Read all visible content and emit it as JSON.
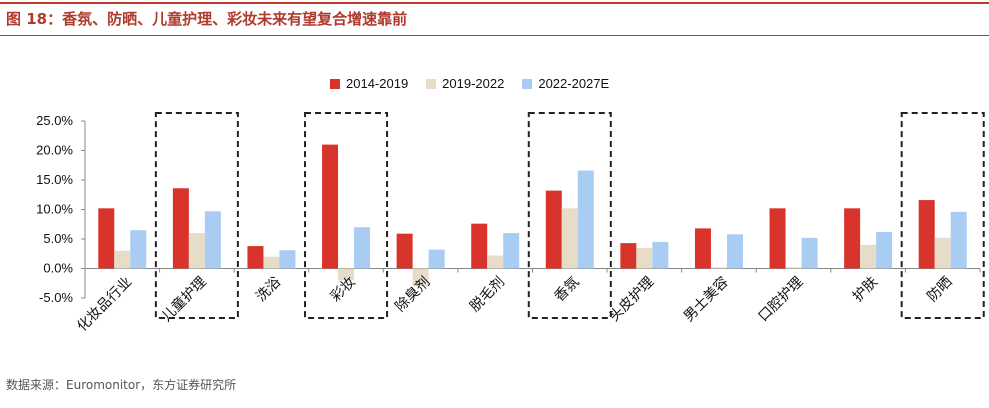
{
  "header": {
    "title": "图 18：香氛、防晒、儿童护理、彩妆未来有望复合增速靠前"
  },
  "footer": {
    "source": "数据来源：Euromonitor，东方证券研究所"
  },
  "chart_data": {
    "type": "bar",
    "title": "",
    "xlabel": "",
    "ylabel": "",
    "ylim": [
      -5,
      25
    ],
    "yticks": [
      "25.0%",
      "20.0%",
      "15.0%",
      "10.0%",
      "5.0%",
      "0.0%",
      "-5.0%"
    ],
    "ytick_values": [
      25,
      20,
      15,
      10,
      5,
      0,
      -5
    ],
    "categories": [
      "化妆品行业",
      "儿童护理",
      "洗浴",
      "彩妆",
      "除臭剂",
      "脱毛剂",
      "香氛",
      "头皮护理",
      "男士美容",
      "口腔护理",
      "护肤",
      "防晒"
    ],
    "series": [
      {
        "name": "2014-2019",
        "color": "#d9342b",
        "values": [
          10.2,
          13.6,
          3.8,
          21.0,
          5.9,
          7.6,
          13.2,
          4.3,
          6.8,
          10.2,
          10.2,
          11.6
        ]
      },
      {
        "name": "2019-2022",
        "color": "#e6dcc8",
        "values": [
          3.0,
          6.0,
          2.0,
          -2.0,
          -3.0,
          2.2,
          10.2,
          3.5,
          0.2,
          0.2,
          4.0,
          5.2
        ]
      },
      {
        "name": "2022-2027E",
        "color": "#a9cdf2",
        "values": [
          6.5,
          9.7,
          3.1,
          7.0,
          3.2,
          6.0,
          16.6,
          4.5,
          5.8,
          5.2,
          6.2,
          9.6
        ]
      }
    ],
    "highlighted": [
      "儿童护理",
      "彩妆",
      "香氛",
      "防晒"
    ],
    "grid": false,
    "legend_position": "top"
  }
}
